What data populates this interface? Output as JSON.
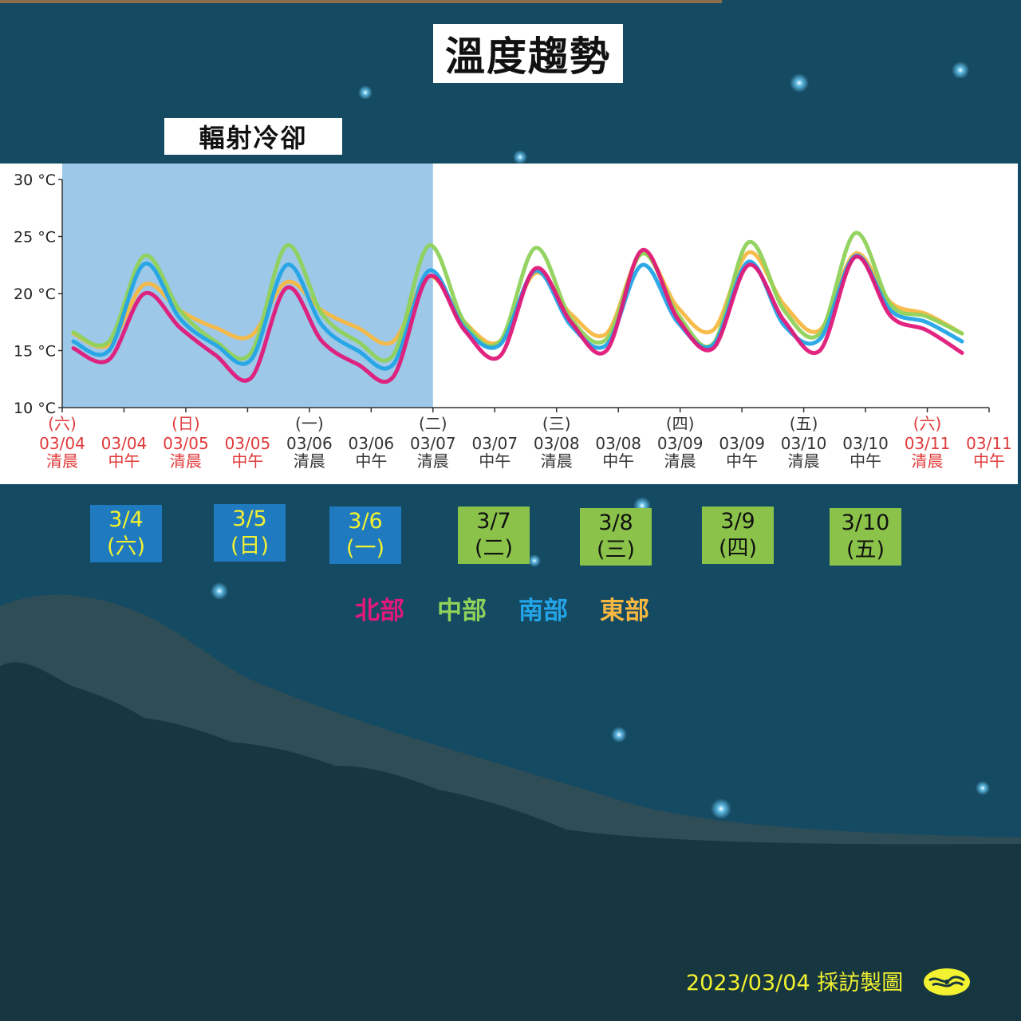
{
  "title": "溫度趨勢",
  "radiative_label": "輻射冷卻",
  "footer_text": "2023/03/04 採訪製圖",
  "legend": [
    {
      "label": "北部",
      "color": "#e0197a"
    },
    {
      "label": "中部",
      "color": "#8fd25a"
    },
    {
      "label": "南部",
      "color": "#23a4e6"
    },
    {
      "label": "東部",
      "color": "#f7b842"
    }
  ],
  "day_boxes": [
    {
      "date": "3/4",
      "weekday": "(六)",
      "style": "past"
    },
    {
      "date": "3/5",
      "weekday": "(日)",
      "style": "past"
    },
    {
      "date": "3/6",
      "weekday": "(一)",
      "style": "past"
    },
    {
      "date": "3/7",
      "weekday": "(二)",
      "style": "future"
    },
    {
      "date": "3/8",
      "weekday": "(三)",
      "style": "future"
    },
    {
      "date": "3/9",
      "weekday": "(四)",
      "style": "future"
    },
    {
      "date": "3/10",
      "weekday": "(五)",
      "style": "future"
    }
  ],
  "colors": {
    "highlight_fill": "#9dc8e8",
    "weekend_label": "#e03a3a",
    "weekday_label": "#333333",
    "background": "#154a63"
  },
  "chart_data": {
    "type": "line",
    "ylim": [
      10,
      30
    ],
    "y_ticks": [
      "10 °C",
      "15 °C",
      "20 °C",
      "25 °C",
      "30 °C"
    ],
    "x_ticks": [
      {
        "weekday": "(六)",
        "date": "03/04",
        "period": "清晨",
        "weekend": true
      },
      {
        "weekday": "",
        "date": "03/04",
        "period": "中午",
        "weekend": true
      },
      {
        "weekday": "(日)",
        "date": "03/05",
        "period": "清晨",
        "weekend": true
      },
      {
        "weekday": "",
        "date": "03/05",
        "period": "中午",
        "weekend": true
      },
      {
        "weekday": "(一)",
        "date": "03/06",
        "period": "清晨",
        "weekend": false
      },
      {
        "weekday": "",
        "date": "03/06",
        "period": "中午",
        "weekend": false
      },
      {
        "weekday": "(二)",
        "date": "03/07",
        "period": "清晨",
        "weekend": false
      },
      {
        "weekday": "",
        "date": "03/07",
        "period": "中午",
        "weekend": false
      },
      {
        "weekday": "(三)",
        "date": "03/08",
        "period": "清晨",
        "weekend": false
      },
      {
        "weekday": "",
        "date": "03/08",
        "period": "中午",
        "weekend": false
      },
      {
        "weekday": "(四)",
        "date": "03/09",
        "period": "清晨",
        "weekend": false
      },
      {
        "weekday": "",
        "date": "03/09",
        "period": "中午",
        "weekend": false
      },
      {
        "weekday": "(五)",
        "date": "03/10",
        "period": "清晨",
        "weekend": false
      },
      {
        "weekday": "",
        "date": "03/10",
        "period": "中午",
        "weekend": false
      },
      {
        "weekday": "(六)",
        "date": "03/11",
        "period": "清晨",
        "weekend": true
      },
      {
        "weekday": "",
        "date": "03/11",
        "period": "中午",
        "weekend": true
      }
    ],
    "highlight_range": [
      0,
      6
    ],
    "series": [
      {
        "name": "北部",
        "color": "#e0197a",
        "values": [
          15.2,
          14.2,
          20.0,
          17.0,
          14.6,
          12.6,
          20.5,
          15.8,
          13.8,
          12.7,
          21.5,
          16.8,
          14.5,
          22.2,
          17.5,
          15.0,
          23.8,
          17.8,
          15.2,
          22.5,
          17.6,
          15.0,
          23.2,
          18.0,
          16.8,
          14.8
        ]
      },
      {
        "name": "中部",
        "color": "#8fd25a",
        "values": [
          16.6,
          15.8,
          23.3,
          18.5,
          15.8,
          14.8,
          24.2,
          18.2,
          15.8,
          14.6,
          24.2,
          17.5,
          15.8,
          24.0,
          17.8,
          16.0,
          23.5,
          18.2,
          15.6,
          24.5,
          18.5,
          16.5,
          25.3,
          19.0,
          18.0,
          16.5
        ]
      },
      {
        "name": "南部",
        "color": "#23a4e6",
        "values": [
          15.8,
          15.0,
          22.6,
          17.8,
          15.5,
          14.2,
          22.5,
          17.2,
          15.0,
          13.8,
          22.0,
          17.0,
          15.5,
          22.0,
          17.2,
          15.5,
          22.5,
          17.5,
          15.5,
          22.8,
          17.2,
          16.0,
          23.3,
          18.5,
          17.5,
          15.8
        ]
      },
      {
        "name": "東部",
        "color": "#f7b842",
        "values": [
          16.5,
          15.5,
          20.8,
          18.5,
          17.0,
          16.3,
          21.0,
          18.5,
          17.0,
          15.8,
          21.5,
          17.5,
          15.8,
          21.8,
          18.2,
          16.5,
          23.5,
          18.8,
          16.8,
          23.6,
          19.0,
          16.8,
          23.5,
          19.2,
          18.2,
          16.5
        ]
      }
    ]
  }
}
